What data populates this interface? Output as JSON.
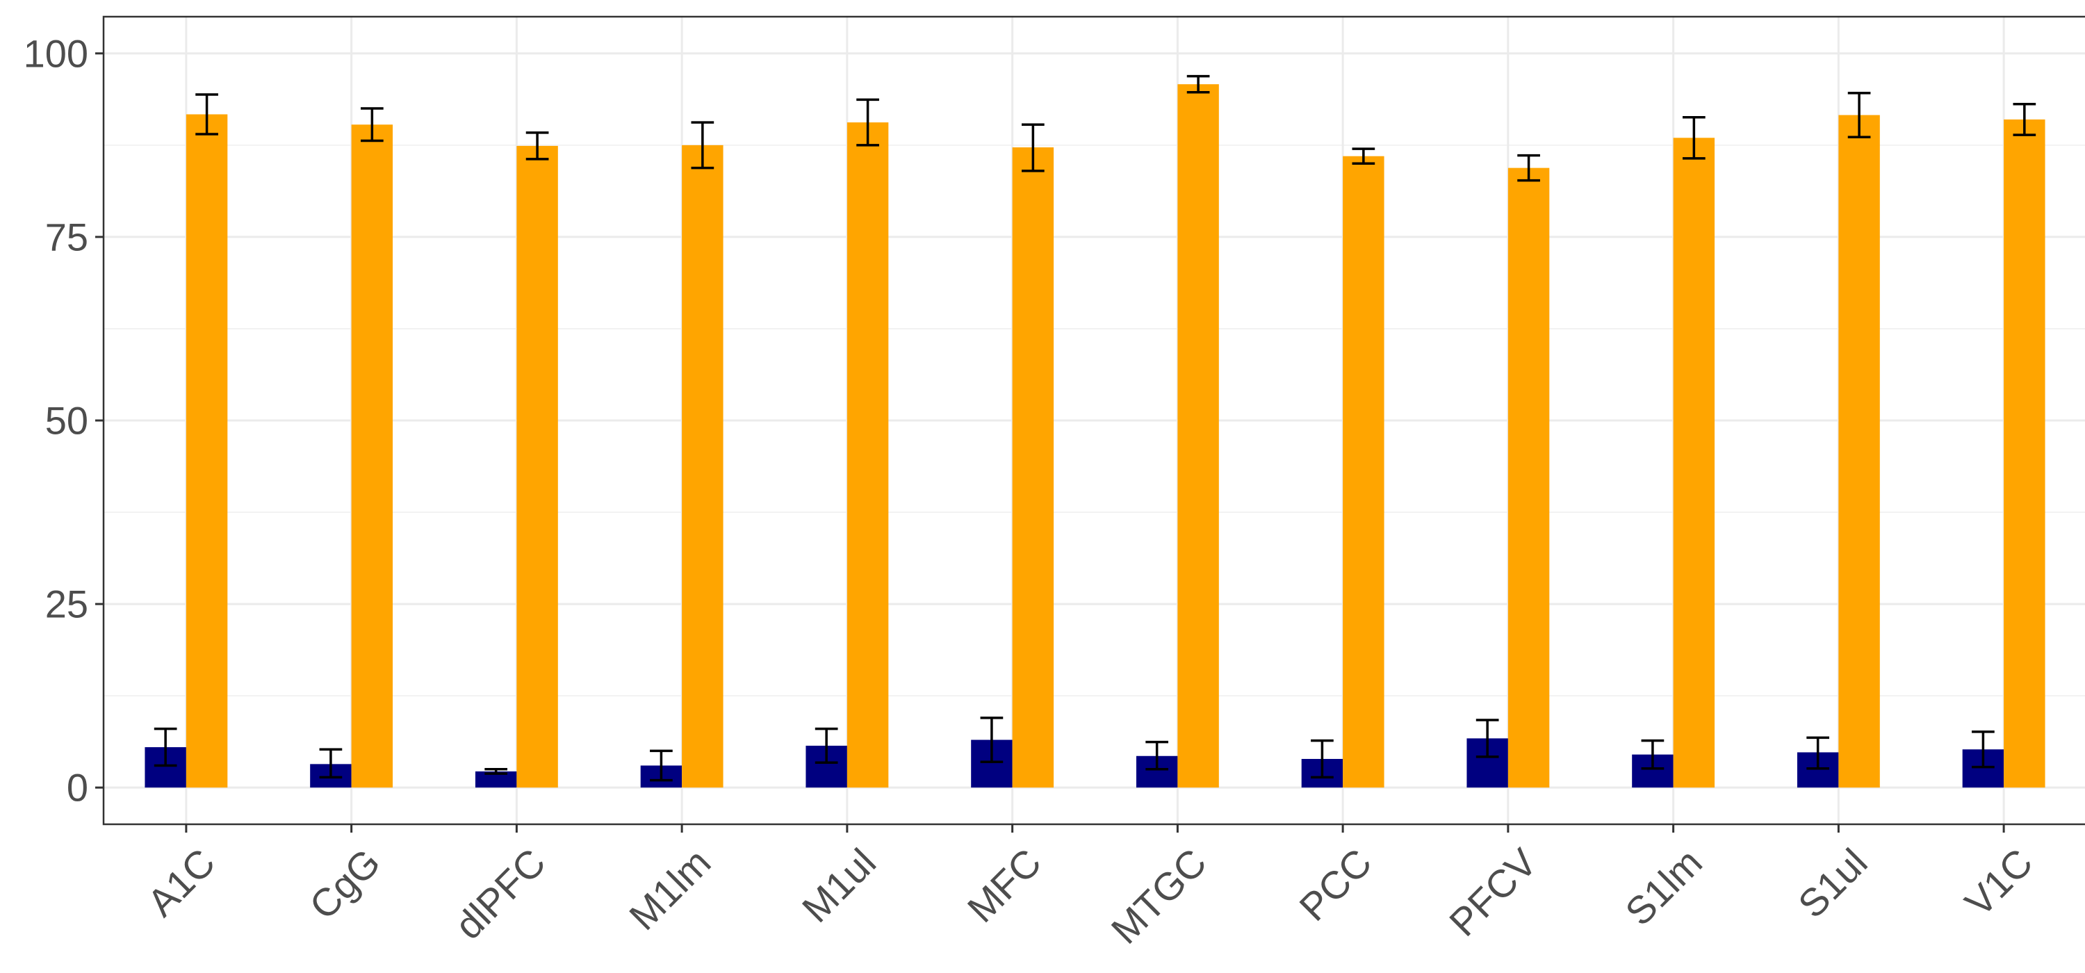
{
  "chart_data": {
    "type": "bar",
    "title": "",
    "xlabel": "",
    "ylabel": "",
    "categories": [
      "A1C",
      "CgG",
      "dlPFC",
      "M1lm",
      "M1ul",
      "MFC",
      "MTGC",
      "PCC",
      "PFCV",
      "S1lm",
      "S1ul",
      "V1C"
    ],
    "ylim": [
      -5,
      105
    ],
    "yticks": [
      0,
      25,
      50,
      75,
      100
    ],
    "ytick_labels": [
      "0",
      "25",
      "50",
      "75",
      "100"
    ],
    "grid": true,
    "legend": "none",
    "series": [
      {
        "color": "#000080",
        "values": [
          5.5,
          3.2,
          2.2,
          3.0,
          5.7,
          6.5,
          4.3,
          3.9,
          6.7,
          4.5,
          4.8,
          5.2
        ],
        "err_low": [
          3.0,
          1.4,
          1.9,
          1.0,
          3.4,
          3.5,
          2.5,
          1.4,
          4.2,
          2.6,
          2.6,
          2.8
        ],
        "err_high": [
          8.0,
          5.2,
          2.5,
          5.0,
          8.0,
          9.5,
          6.2,
          6.4,
          9.2,
          6.4,
          6.8,
          7.6
        ]
      },
      {
        "color": "#FFA500",
        "values": [
          91.7,
          90.3,
          87.4,
          87.5,
          90.6,
          87.2,
          95.8,
          86.0,
          84.4,
          88.5,
          91.6,
          91.0
        ],
        "err_low": [
          89.0,
          88.1,
          85.6,
          84.4,
          87.5,
          84.0,
          94.7,
          85.0,
          82.7,
          85.7,
          88.6,
          88.9
        ],
        "err_high": [
          94.4,
          92.5,
          89.2,
          90.6,
          93.7,
          90.3,
          96.9,
          87.0,
          86.1,
          91.3,
          94.6,
          93.1
        ]
      }
    ]
  }
}
